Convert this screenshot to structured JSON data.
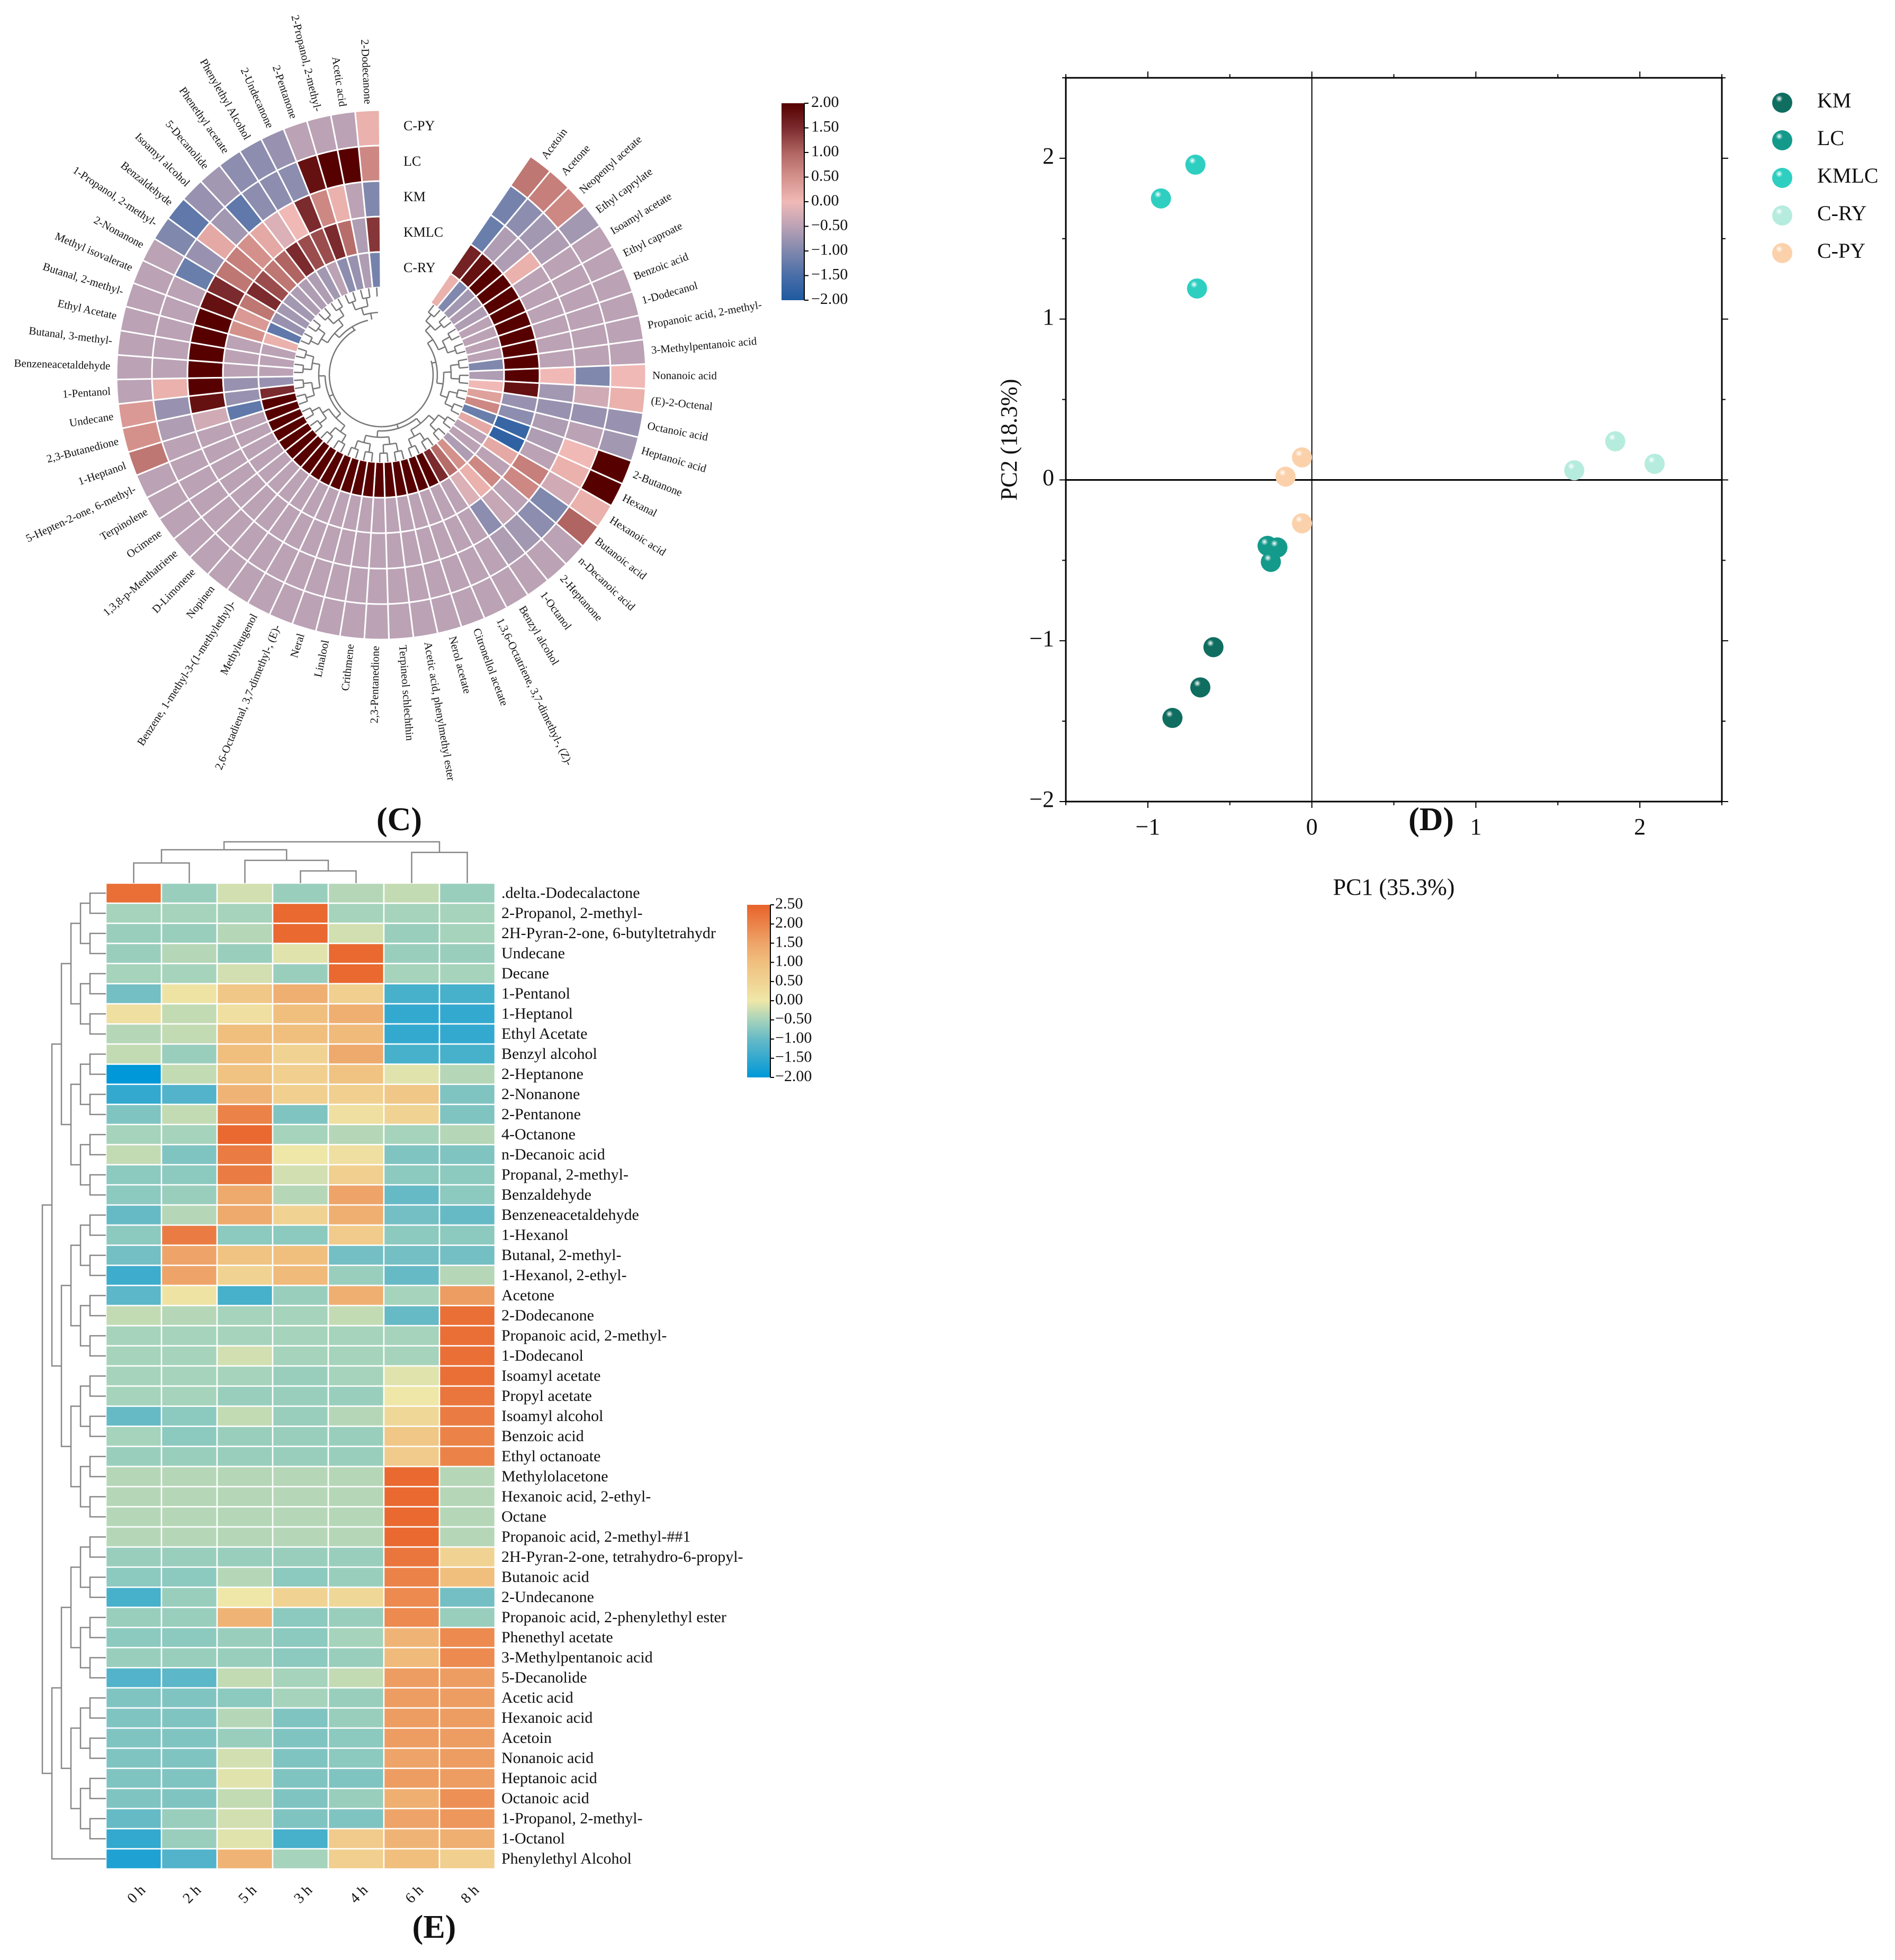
{
  "panels": {
    "c": "(C)",
    "d": "(D)",
    "e": "(E)"
  },
  "chart_data": [
    {
      "type": "heatmap",
      "layout": "circular",
      "groups": [
        "C-PY",
        "LC",
        "KM",
        "KMLC",
        "C-RY"
      ],
      "compounds": [
        "Acetoin",
        "Acetone",
        "Neopentyl acetate",
        "Ethyl caprylate",
        "Isoamyl acetate",
        "Ethyl caproate",
        "Benzoic acid",
        "1-Dodecanol",
        "Propanoic acid, 2-methyl-",
        "3-Methylpentanoic acid",
        "Nonanoic acid",
        "(E)-2-Octenal",
        "Octanoic acid",
        "Heptanoic acid",
        "2-Butanone",
        "Hexanal",
        "Hexanoic acid",
        "Butanoic acid",
        "n-Decanoic acid",
        "2-Heptanone",
        "1-Octanol",
        "Benzyl alcohol",
        "1,3,6-Octatriene, 3,7-dimethyl-, (Z)-",
        "Citronellol acetate",
        "Nerol acetate",
        "Acetic acid, phenylmethyl ester",
        "Terpineol schlechthin",
        "2,3-Pentanedione",
        "Crithmene",
        "Linalool",
        "Neral",
        "2,6-Octadienal, 3,7-dimethyl-, (E)-",
        "Methyleugenol",
        "Benzene, 1-methyl-3-(1-methylethyl)-",
        "Nopinen",
        "D-Limonene",
        "1,3,8-p-Menthatriene",
        "Ocimene",
        "Terpinolene",
        "5-Hepten-2-one, 6-methyl-",
        "1-Heptanol",
        "2,3-Butanedione",
        "Undecane",
        "1-Pentanol",
        "Benzeneacetaldehyde",
        "Butanal, 3-methyl-",
        "Ethyl Acetate",
        "Butanal, 2-methyl-",
        "Methyl isovalerate",
        "2-Nonanone",
        "1-Propanol, 2-methyl-",
        "Benzaldehyde",
        "Isoamyl alcohol",
        "5-Decanolide",
        "Phenethyl acetate",
        "Phenylethyl Alcohol",
        "2-Undecanone",
        "2-Pentanone",
        "2-Propanol, 2-methyl-",
        "Acetic acid",
        "2-Dodecanone"
      ],
      "values": [
        [
          0.8,
          -1.1,
          -1.2,
          1.6,
          0.1
        ],
        [
          0.7,
          -0.9,
          -0.6,
          1.8,
          -1.0
        ],
        [
          0.6,
          -0.7,
          -0.6,
          2,
          -0.7
        ],
        [
          -0.7,
          -0.6,
          0.1,
          2,
          -0.6
        ],
        [
          -0.5,
          -0.5,
          -0.5,
          2,
          -0.6
        ],
        [
          -0.5,
          -0.5,
          -0.5,
          2,
          -0.5
        ],
        [
          -0.5,
          -0.5,
          -0.5,
          2,
          -0.5
        ],
        [
          -0.5,
          -0.5,
          -0.5,
          2,
          -0.5
        ],
        [
          -0.5,
          -0.5,
          -0.5,
          2,
          -0.5
        ],
        [
          -0.5,
          -0.5,
          -0.5,
          2,
          -1.0
        ],
        [
          0.0,
          -1.0,
          0.0,
          2,
          -0.6
        ],
        [
          0.1,
          -0.3,
          -0.7,
          1.8,
          0.0
        ],
        [
          -0.8,
          -0.8,
          -0.8,
          -0.8,
          0.3
        ],
        [
          -0.7,
          -0.5,
          -0.6,
          -0.9,
          0.6
        ],
        [
          2,
          0.0,
          -0.6,
          -1.7,
          -1.2
        ],
        [
          2,
          0.1,
          -0.5,
          -1.8,
          0.2
        ],
        [
          0.1,
          -0.3,
          0.7,
          0.2,
          -0.5
        ],
        [
          1.0,
          -1.0,
          0.6,
          -0.5,
          -0.5
        ],
        [
          -0.5,
          -0.9,
          -0.5,
          0.6,
          -0.6
        ],
        [
          -0.5,
          -0.7,
          -0.4,
          0.1,
          0.5
        ],
        [
          -0.5,
          -0.6,
          -0.9,
          -0.2,
          0.9
        ],
        [
          -0.5,
          -0.5,
          -0.5,
          -0.5,
          1.5
        ],
        [
          -0.5,
          -0.5,
          -0.5,
          -0.5,
          2
        ],
        [
          -0.5,
          -0.5,
          -0.5,
          -0.5,
          2
        ],
        [
          -0.5,
          -0.5,
          -0.5,
          -0.5,
          2
        ],
        [
          -0.5,
          -0.5,
          -0.5,
          -0.5,
          2
        ],
        [
          -0.5,
          -0.5,
          -0.5,
          -0.5,
          2
        ],
        [
          -0.5,
          -0.5,
          -0.5,
          -0.5,
          2
        ],
        [
          -0.5,
          -0.5,
          -0.5,
          -0.5,
          2
        ],
        [
          -0.5,
          -0.5,
          -0.5,
          -0.5,
          2
        ],
        [
          -0.5,
          -0.5,
          -0.5,
          -0.5,
          2
        ],
        [
          -0.5,
          -0.5,
          -0.5,
          -0.5,
          2
        ],
        [
          -0.5,
          -0.5,
          -0.5,
          -0.5,
          2
        ],
        [
          -0.5,
          -0.5,
          -0.5,
          -0.5,
          2
        ],
        [
          -0.5,
          -0.5,
          -0.5,
          -0.5,
          2
        ],
        [
          -0.5,
          -0.5,
          -0.5,
          -0.5,
          2
        ],
        [
          -0.5,
          -0.5,
          -0.5,
          -0.5,
          2
        ],
        [
          -0.5,
          -0.5,
          -0.5,
          -0.5,
          2
        ],
        [
          -0.5,
          -0.5,
          -0.5,
          -0.5,
          2
        ],
        [
          -0.5,
          -0.5,
          -0.5,
          -0.5,
          2
        ],
        [
          0.8,
          -0.5,
          -0.5,
          -0.5,
          2
        ],
        [
          0.5,
          -0.6,
          -0.3,
          -1.3,
          2
        ],
        [
          0.4,
          -0.8,
          1.8,
          -0.8,
          1.5
        ],
        [
          -0.5,
          0.1,
          2,
          -0.8,
          -0.8
        ],
        [
          -0.5,
          -0.5,
          2,
          -0.5,
          -0.5
        ],
        [
          -0.5,
          -0.5,
          2,
          -0.5,
          -0.5
        ],
        [
          -0.5,
          -0.5,
          2,
          -0.5,
          -0.5
        ],
        [
          -0.5,
          -0.5,
          2,
          0.5,
          0.1
        ],
        [
          -0.5,
          -0.5,
          1.8,
          0.4,
          -1.3
        ],
        [
          -0.5,
          -1.2,
          1.5,
          0.8,
          -0.8
        ],
        [
          -1.0,
          -0.8,
          0.8,
          1.5,
          -0.7
        ],
        [
          -1.3,
          0.2,
          0.7,
          1.2,
          -0.7
        ],
        [
          -0.8,
          -0.7,
          0.5,
          0.8,
          -0.6
        ],
        [
          -0.7,
          -1.3,
          0.2,
          1.0,
          -0.6
        ],
        [
          -0.9,
          -0.9,
          -0.2,
          1.5,
          -0.6
        ],
        [
          -0.9,
          -0.9,
          0.0,
          1.2,
          -0.7
        ],
        [
          -0.8,
          -0.9,
          1.5,
          1.2,
          -0.5
        ],
        [
          -0.5,
          1.8,
          0.6,
          1.5,
          -0.9
        ],
        [
          -0.5,
          2,
          0.1,
          0.9,
          -0.8
        ],
        [
          -0.5,
          2,
          -0.5,
          -0.6,
          -0.6
        ],
        [
          0.1,
          0.6,
          -1.0,
          1.4,
          -1.1
        ]
      ],
      "colorbar": {
        "range": [
          -2,
          2
        ],
        "ticks": [
          "2.00",
          "1.50",
          "1.00",
          "0.50",
          "0.00",
          "−0.50",
          "−1.00",
          "−1.50",
          "−2.00"
        ]
      }
    },
    {
      "type": "scatter",
      "xlabel": "PC1 (35.3%)",
      "ylabel": "PC2 (18.3%)",
      "xlim": [
        -1.5,
        2.5
      ],
      "ylim": [
        -2,
        2.5
      ],
      "xticks": [
        "−1",
        "0",
        "1",
        "2"
      ],
      "xtick_values": [
        -1,
        0,
        1,
        2
      ],
      "yticks": [
        "−2",
        "−1",
        "0",
        "1",
        "2"
      ],
      "ytick_values": [
        -2,
        -1,
        0,
        1,
        2
      ],
      "legend_position": "right",
      "series": [
        {
          "name": "KM",
          "color": "#0f6e60",
          "points": [
            [
              -0.6,
              -1.04
            ],
            [
              -0.68,
              -1.29
            ],
            [
              -0.85,
              -1.48
            ]
          ]
        },
        {
          "name": "LC",
          "color": "#149a8b",
          "points": [
            [
              -0.27,
              -0.41
            ],
            [
              -0.21,
              -0.42
            ],
            [
              -0.25,
              -0.51
            ]
          ]
        },
        {
          "name": "KMLC",
          "color": "#2ecfc1",
          "points": [
            [
              -0.92,
              1.75
            ],
            [
              -0.71,
              1.96
            ],
            [
              -0.7,
              1.19
            ]
          ]
        },
        {
          "name": "C-RY",
          "color": "#b5ecdd",
          "points": [
            [
              1.6,
              0.06
            ],
            [
              1.85,
              0.24
            ],
            [
              2.09,
              0.1
            ]
          ]
        },
        {
          "name": "C-PY",
          "color": "#fbd1ab",
          "points": [
            [
              -0.06,
              0.14
            ],
            [
              -0.16,
              0.02
            ],
            [
              -0.06,
              -0.27
            ]
          ]
        }
      ]
    },
    {
      "type": "heatmap",
      "columns": [
        "0 h",
        "2 h",
        "5 h",
        "3 h",
        "4 h",
        "6 h",
        "8 h"
      ],
      "rows": [
        ".delta.-Dodecalactone",
        "2-Propanol, 2-methyl-",
        "2H-Pyran-2-one, 6-butyltetrahydr",
        "Undecane",
        "Decane",
        "1-Pentanol",
        "1-Heptanol",
        "Ethyl Acetate",
        "Benzyl alcohol",
        "2-Heptanone",
        "2-Nonanone",
        "2-Pentanone",
        "4-Octanone",
        "n-Decanoic acid",
        "Propanal, 2-methyl-",
        "Benzaldehyde",
        "Benzeneacetaldehyde",
        "1-Hexanol",
        "Butanal, 2-methyl-",
        "1-Hexanol, 2-ethyl-",
        "Acetone",
        "2-Dodecanone",
        "Propanoic acid, 2-methyl-",
        "1-Dodecanol",
        "Isoamyl acetate",
        "Propyl acetate",
        "Isoamyl alcohol",
        "Benzoic acid",
        "Ethyl octanoate",
        "Methylolacetone",
        "Hexanoic acid, 2-ethyl-",
        "Octane",
        "Propanoic acid, 2-methyl-##1",
        "2H-Pyran-2-one, tetrahydro-6-propyl-",
        "Butanoic acid",
        "2-Undecanone",
        "Propanoic acid, 2-phenylethyl ester",
        "Phenethyl acetate",
        "3-Methylpentanoic acid",
        "5-Decanolide",
        "Acetic acid",
        "Hexanoic acid",
        "Acetoin",
        "Nonanoic acid",
        "Heptanoic acid",
        "Octanoic acid",
        "1-Propanol, 2-methyl-",
        "1-Octanol",
        "Phenylethyl Alcohol"
      ],
      "values": [
        [
          2.3,
          -0.6,
          -0.2,
          -0.6,
          -0.4,
          -0.3,
          -0.6
        ],
        [
          -0.5,
          -0.5,
          -0.5,
          2.4,
          -0.5,
          -0.5,
          -0.5
        ],
        [
          -0.6,
          -0.6,
          -0.4,
          2.4,
          -0.2,
          -0.6,
          -0.5
        ],
        [
          -0.6,
          -0.4,
          -0.6,
          -0.1,
          2.4,
          -0.6,
          -0.6
        ],
        [
          -0.5,
          -0.5,
          -0.2,
          -0.6,
          2.4,
          -0.5,
          -0.5
        ],
        [
          -0.9,
          0.1,
          0.8,
          1.3,
          0.6,
          -1.3,
          -1.3
        ],
        [
          0.2,
          -0.3,
          0.2,
          1.0,
          1.3,
          -1.5,
          -1.5
        ],
        [
          -0.4,
          -0.3,
          1.0,
          1.0,
          1.1,
          -1.5,
          -1.5
        ],
        [
          -0.3,
          -0.6,
          1.0,
          0.5,
          1.4,
          -1.3,
          -1.3
        ],
        [
          -2,
          -0.3,
          0.9,
          0.6,
          0.9,
          -0.1,
          -0.4
        ],
        [
          -1.5,
          -1.2,
          1.2,
          0.6,
          0.6,
          0.8,
          -0.8
        ],
        [
          -0.8,
          -0.3,
          2.0,
          -0.8,
          0.2,
          0.5,
          -0.8
        ],
        [
          -0.5,
          -0.5,
          2.4,
          -0.5,
          -0.4,
          -0.5,
          -0.4
        ],
        [
          -0.3,
          -0.8,
          2.1,
          0.0,
          0.2,
          -0.8,
          -0.8
        ],
        [
          -0.7,
          -0.7,
          2.1,
          -0.2,
          0.6,
          -0.7,
          -0.7
        ],
        [
          -0.7,
          -0.6,
          1.4,
          -0.4,
          1.5,
          -1.0,
          -0.7
        ],
        [
          -1.0,
          -0.4,
          1.4,
          0.5,
          1.3,
          -0.9,
          -1.0
        ],
        [
          -0.7,
          2.1,
          -0.7,
          -0.7,
          0.7,
          -0.7,
          -0.7
        ],
        [
          -0.9,
          1.5,
          0.9,
          1.0,
          -0.9,
          -0.9,
          -0.9
        ],
        [
          -1.4,
          1.5,
          0.5,
          1.1,
          -0.6,
          -1.0,
          -0.4
        ],
        [
          -1.1,
          0.1,
          -1.3,
          -0.6,
          1.3,
          -0.5,
          1.6
        ],
        [
          -0.3,
          -0.4,
          -0.5,
          -0.5,
          -0.3,
          -1.0,
          2.3
        ],
        [
          -0.5,
          -0.5,
          -0.5,
          -0.5,
          -0.5,
          -0.5,
          2.3
        ],
        [
          -0.5,
          -0.5,
          -0.2,
          -0.5,
          -0.5,
          -0.5,
          2.3
        ],
        [
          -0.5,
          -0.5,
          -0.5,
          -0.6,
          -0.5,
          -0.1,
          2.3
        ],
        [
          -0.5,
          -0.5,
          -0.6,
          -0.6,
          -0.6,
          0.0,
          2.2
        ],
        [
          -1.0,
          -0.7,
          -0.3,
          -0.6,
          -0.4,
          0.4,
          2.1
        ],
        [
          -0.5,
          -0.7,
          -0.6,
          -0.6,
          -0.6,
          0.8,
          2.0
        ],
        [
          -0.6,
          -0.6,
          -0.6,
          -0.6,
          -0.6,
          0.7,
          2.0
        ],
        [
          -0.4,
          -0.4,
          -0.4,
          -0.4,
          -0.4,
          2.4,
          -0.4
        ],
        [
          -0.4,
          -0.4,
          -0.4,
          -0.4,
          -0.4,
          2.4,
          -0.4
        ],
        [
          -0.4,
          -0.4,
          -0.4,
          -0.4,
          -0.4,
          2.4,
          -0.4
        ],
        [
          -0.4,
          -0.4,
          -0.4,
          -0.4,
          -0.4,
          2.4,
          -0.4
        ],
        [
          -0.6,
          -0.6,
          -0.6,
          -0.6,
          -0.6,
          2.2,
          0.5
        ],
        [
          -0.7,
          -0.7,
          -0.4,
          -0.7,
          -0.6,
          2.0,
          1.0
        ],
        [
          -1.3,
          -0.6,
          0.0,
          0.5,
          0.4,
          1.9,
          -0.9
        ],
        [
          -0.6,
          -0.6,
          1.2,
          -0.7,
          -0.6,
          1.9,
          -0.6
        ],
        [
          -0.7,
          -0.7,
          -0.6,
          -0.7,
          -0.5,
          1.2,
          1.9
        ],
        [
          -0.6,
          -0.6,
          -0.6,
          -0.7,
          -0.6,
          1.1,
          1.9
        ],
        [
          -1.2,
          -1.1,
          -0.3,
          -0.5,
          -0.3,
          1.6,
          1.6
        ],
        [
          -0.8,
          -0.8,
          -0.7,
          -0.5,
          -0.6,
          1.6,
          1.6
        ],
        [
          -0.8,
          -0.8,
          -0.4,
          -0.8,
          -0.6,
          1.6,
          1.6
        ],
        [
          -0.8,
          -0.8,
          -0.6,
          -0.8,
          -0.7,
          1.6,
          1.6
        ],
        [
          -0.8,
          -0.8,
          -0.2,
          -0.8,
          -0.7,
          1.5,
          1.6
        ],
        [
          -0.8,
          -0.8,
          -0.1,
          -0.8,
          -0.8,
          1.6,
          1.6
        ],
        [
          -0.8,
          -0.8,
          -0.3,
          -0.8,
          -0.6,
          1.3,
          1.8
        ],
        [
          -1.0,
          -0.6,
          -0.2,
          -0.8,
          -0.8,
          1.5,
          1.7
        ],
        [
          -1.5,
          -0.6,
          -0.1,
          -1.3,
          0.7,
          1.2,
          1.3
        ],
        [
          -1.7,
          -1.2,
          1.2,
          -0.5,
          0.6,
          1.0,
          0.6
        ]
      ],
      "colorbar": {
        "range": [
          -2,
          2.5
        ],
        "ticks": [
          "2.50",
          "2.00",
          "1.50",
          "1.00",
          "0.50",
          "0.00",
          "−0.50",
          "−1.00",
          "−1.50",
          "−2.00"
        ]
      }
    }
  ]
}
